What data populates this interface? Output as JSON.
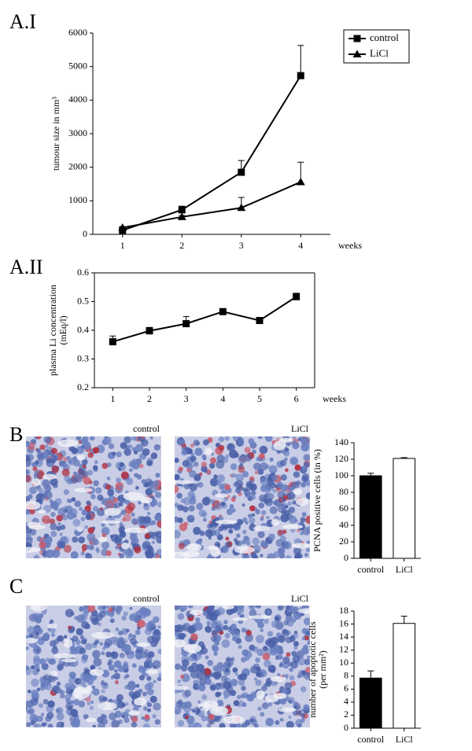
{
  "panels": [
    "A.I",
    "A.II",
    "B",
    "C"
  ],
  "image_captions": [
    [
      "control",
      "LiCl"
    ],
    [
      "control",
      "LiCl"
    ]
  ],
  "chart_data": [
    {
      "type": "line",
      "ylabel": [
        "tumour size in mm³"
      ],
      "xlabel": "weeks",
      "categories": [
        "1",
        "2",
        "3",
        "4"
      ],
      "series": [
        {
          "name": "control",
          "color": "#000000",
          "marker": "square",
          "values": [
            120,
            730,
            1850,
            4730
          ],
          "errors": [
            50,
            110,
            350,
            900
          ]
        },
        {
          "name": "LiCl",
          "color": "#000000",
          "marker": "triangle",
          "values": [
            200,
            520,
            790,
            1560
          ],
          "errors": [
            30,
            40,
            310,
            590
          ]
        }
      ],
      "ylim": [
        0,
        6000
      ],
      "yticks": [
        0,
        1000,
        2000,
        3000,
        4000,
        5000,
        6000
      ],
      "legend": "outside-top-right",
      "frame": false
    },
    {
      "type": "line",
      "ylabel": [
        "plasma Li concentration",
        "(mEq/l)"
      ],
      "xlabel": "weeks",
      "categories": [
        "1",
        "2",
        "3",
        "4",
        "5",
        "6"
      ],
      "series": [
        {
          "color": "#000000",
          "marker": "square",
          "values": [
            0.36,
            0.398,
            0.423,
            0.465,
            0.434,
            0.517
          ],
          "errors": [
            0.02,
            0.012,
            0.025,
            0.005,
            0.005,
            0.012
          ]
        }
      ],
      "ylim": [
        0.2,
        0.6
      ],
      "yticks": [
        0.2,
        0.3,
        0.4,
        0.5,
        0.6
      ],
      "frame": true
    },
    {
      "type": "bar",
      "ylabel": [
        "PCNA positive cells (in %)"
      ],
      "categories": [
        "control",
        "LiCl"
      ],
      "values": [
        100,
        121
      ],
      "errors": [
        3,
        1
      ],
      "colors": [
        "#000000",
        "#ffffff"
      ],
      "ylim": [
        0,
        140
      ],
      "yticks": [
        0,
        20,
        40,
        60,
        80,
        100,
        120,
        140
      ],
      "frame": false
    },
    {
      "type": "bar",
      "ylabel": [
        "number of apoptotic cells",
        "(per mm²)"
      ],
      "categories": [
        "control",
        "LiCl"
      ],
      "values": [
        7.7,
        16.1
      ],
      "errors": [
        1.1,
        1.1
      ],
      "colors": [
        "#000000",
        "#ffffff"
      ],
      "ylim": [
        0,
        18
      ],
      "yticks": [
        0,
        2,
        4,
        6,
        8,
        10,
        12,
        14,
        16,
        18
      ],
      "frame": false
    }
  ]
}
